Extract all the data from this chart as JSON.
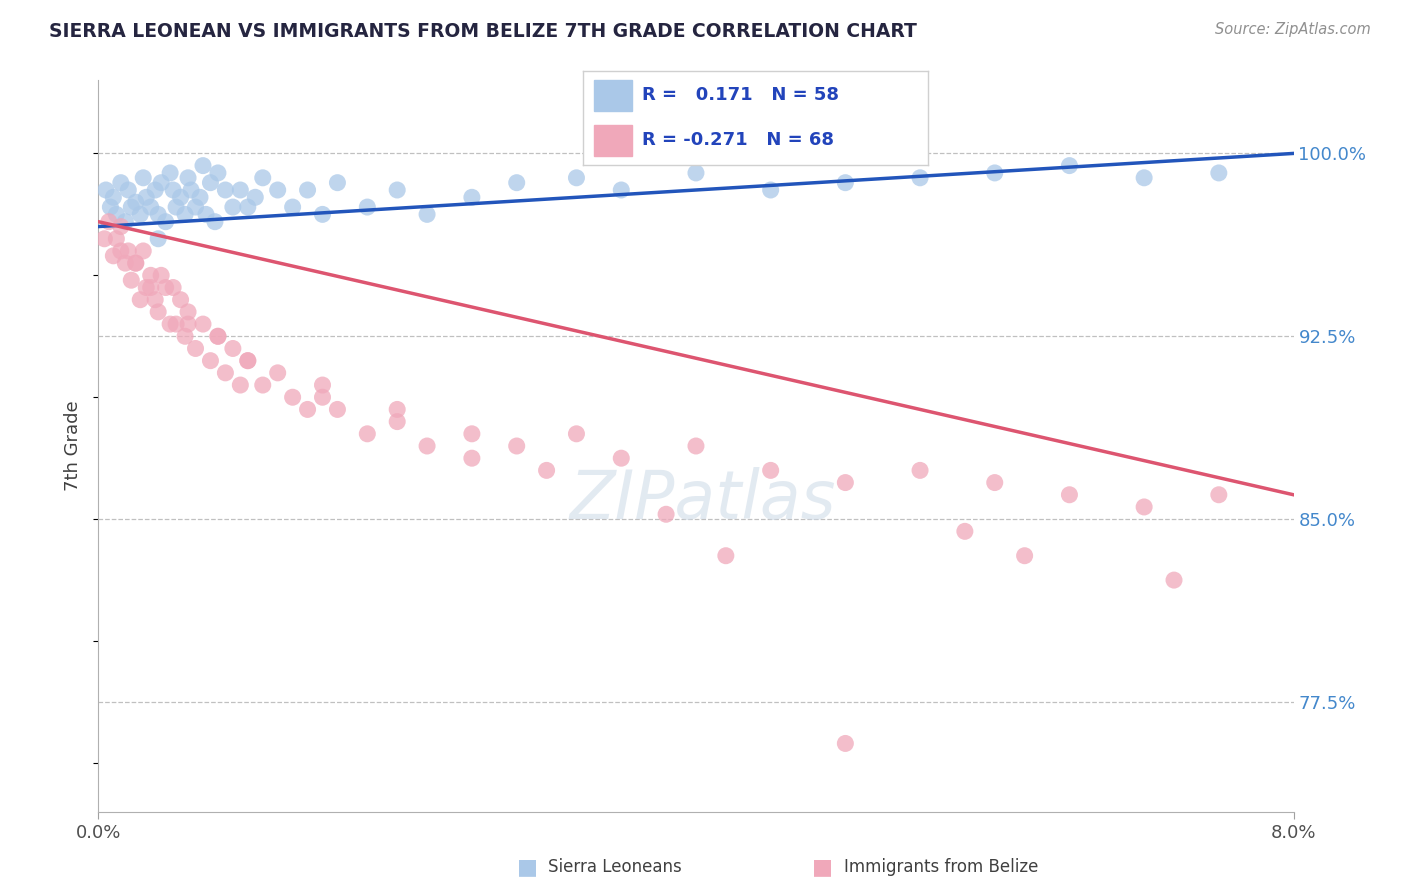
{
  "title": "SIERRA LEONEAN VS IMMIGRANTS FROM BELIZE 7TH GRADE CORRELATION CHART",
  "source": "Source: ZipAtlas.com",
  "ylabel": "7th Grade",
  "xmin": 0.0,
  "xmax": 8.0,
  "ymin": 73.0,
  "ymax": 103.0,
  "yticks": [
    77.5,
    85.0,
    92.5,
    100.0
  ],
  "blue_R": 0.171,
  "blue_N": 58,
  "pink_R": -0.271,
  "pink_N": 68,
  "blue_color": "#aac8e8",
  "pink_color": "#f0a8ba",
  "blue_line_color": "#2255bb",
  "pink_line_color": "#dd5570",
  "blue_line_y0": 97.0,
  "blue_line_y1": 100.0,
  "pink_line_y0": 97.2,
  "pink_line_y1": 86.0,
  "blue_scatter_x": [
    0.05,
    0.08,
    0.1,
    0.12,
    0.15,
    0.18,
    0.2,
    0.22,
    0.25,
    0.28,
    0.3,
    0.32,
    0.35,
    0.38,
    0.4,
    0.42,
    0.45,
    0.48,
    0.5,
    0.52,
    0.55,
    0.58,
    0.6,
    0.62,
    0.65,
    0.68,
    0.7,
    0.72,
    0.75,
    0.78,
    0.8,
    0.85,
    0.9,
    0.95,
    1.0,
    1.05,
    1.1,
    1.2,
    1.3,
    1.4,
    1.5,
    1.6,
    1.8,
    2.0,
    2.2,
    2.5,
    2.8,
    3.2,
    3.5,
    4.0,
    4.5,
    5.0,
    5.5,
    6.0,
    6.5,
    7.0,
    7.5,
    0.4
  ],
  "blue_scatter_y": [
    98.5,
    97.8,
    98.2,
    97.5,
    98.8,
    97.2,
    98.5,
    97.8,
    98.0,
    97.5,
    99.0,
    98.2,
    97.8,
    98.5,
    97.5,
    98.8,
    97.2,
    99.2,
    98.5,
    97.8,
    98.2,
    97.5,
    99.0,
    98.5,
    97.8,
    98.2,
    99.5,
    97.5,
    98.8,
    97.2,
    99.2,
    98.5,
    97.8,
    98.5,
    97.8,
    98.2,
    99.0,
    98.5,
    97.8,
    98.5,
    97.5,
    98.8,
    97.8,
    98.5,
    97.5,
    98.2,
    98.8,
    99.0,
    98.5,
    99.2,
    98.5,
    98.8,
    99.0,
    99.2,
    99.5,
    99.0,
    99.2,
    96.5
  ],
  "pink_scatter_x": [
    0.04,
    0.07,
    0.1,
    0.12,
    0.15,
    0.18,
    0.2,
    0.22,
    0.25,
    0.28,
    0.3,
    0.32,
    0.35,
    0.38,
    0.4,
    0.42,
    0.45,
    0.48,
    0.5,
    0.52,
    0.55,
    0.58,
    0.6,
    0.65,
    0.7,
    0.75,
    0.8,
    0.85,
    0.9,
    0.95,
    1.0,
    1.1,
    1.2,
    1.3,
    1.4,
    1.5,
    1.6,
    1.8,
    2.0,
    2.2,
    2.5,
    2.8,
    3.0,
    3.2,
    3.5,
    4.0,
    4.5,
    5.0,
    5.5,
    6.0,
    6.5,
    7.0,
    7.5,
    0.15,
    0.25,
    0.35,
    0.6,
    0.8,
    1.0,
    1.5,
    2.0,
    2.5,
    3.8,
    4.2,
    5.8,
    6.2,
    7.2,
    5.0
  ],
  "pink_scatter_y": [
    96.5,
    97.2,
    95.8,
    96.5,
    97.0,
    95.5,
    96.0,
    94.8,
    95.5,
    94.0,
    96.0,
    94.5,
    95.0,
    94.0,
    93.5,
    95.0,
    94.5,
    93.0,
    94.5,
    93.0,
    94.0,
    92.5,
    93.5,
    92.0,
    93.0,
    91.5,
    92.5,
    91.0,
    92.0,
    90.5,
    91.5,
    90.5,
    91.0,
    90.0,
    89.5,
    90.5,
    89.5,
    88.5,
    89.0,
    88.0,
    87.5,
    88.0,
    87.0,
    88.5,
    87.5,
    88.0,
    87.0,
    86.5,
    87.0,
    86.5,
    86.0,
    85.5,
    86.0,
    96.0,
    95.5,
    94.5,
    93.0,
    92.5,
    91.5,
    90.0,
    89.5,
    88.5,
    85.2,
    83.5,
    84.5,
    83.5,
    82.5,
    75.8
  ]
}
